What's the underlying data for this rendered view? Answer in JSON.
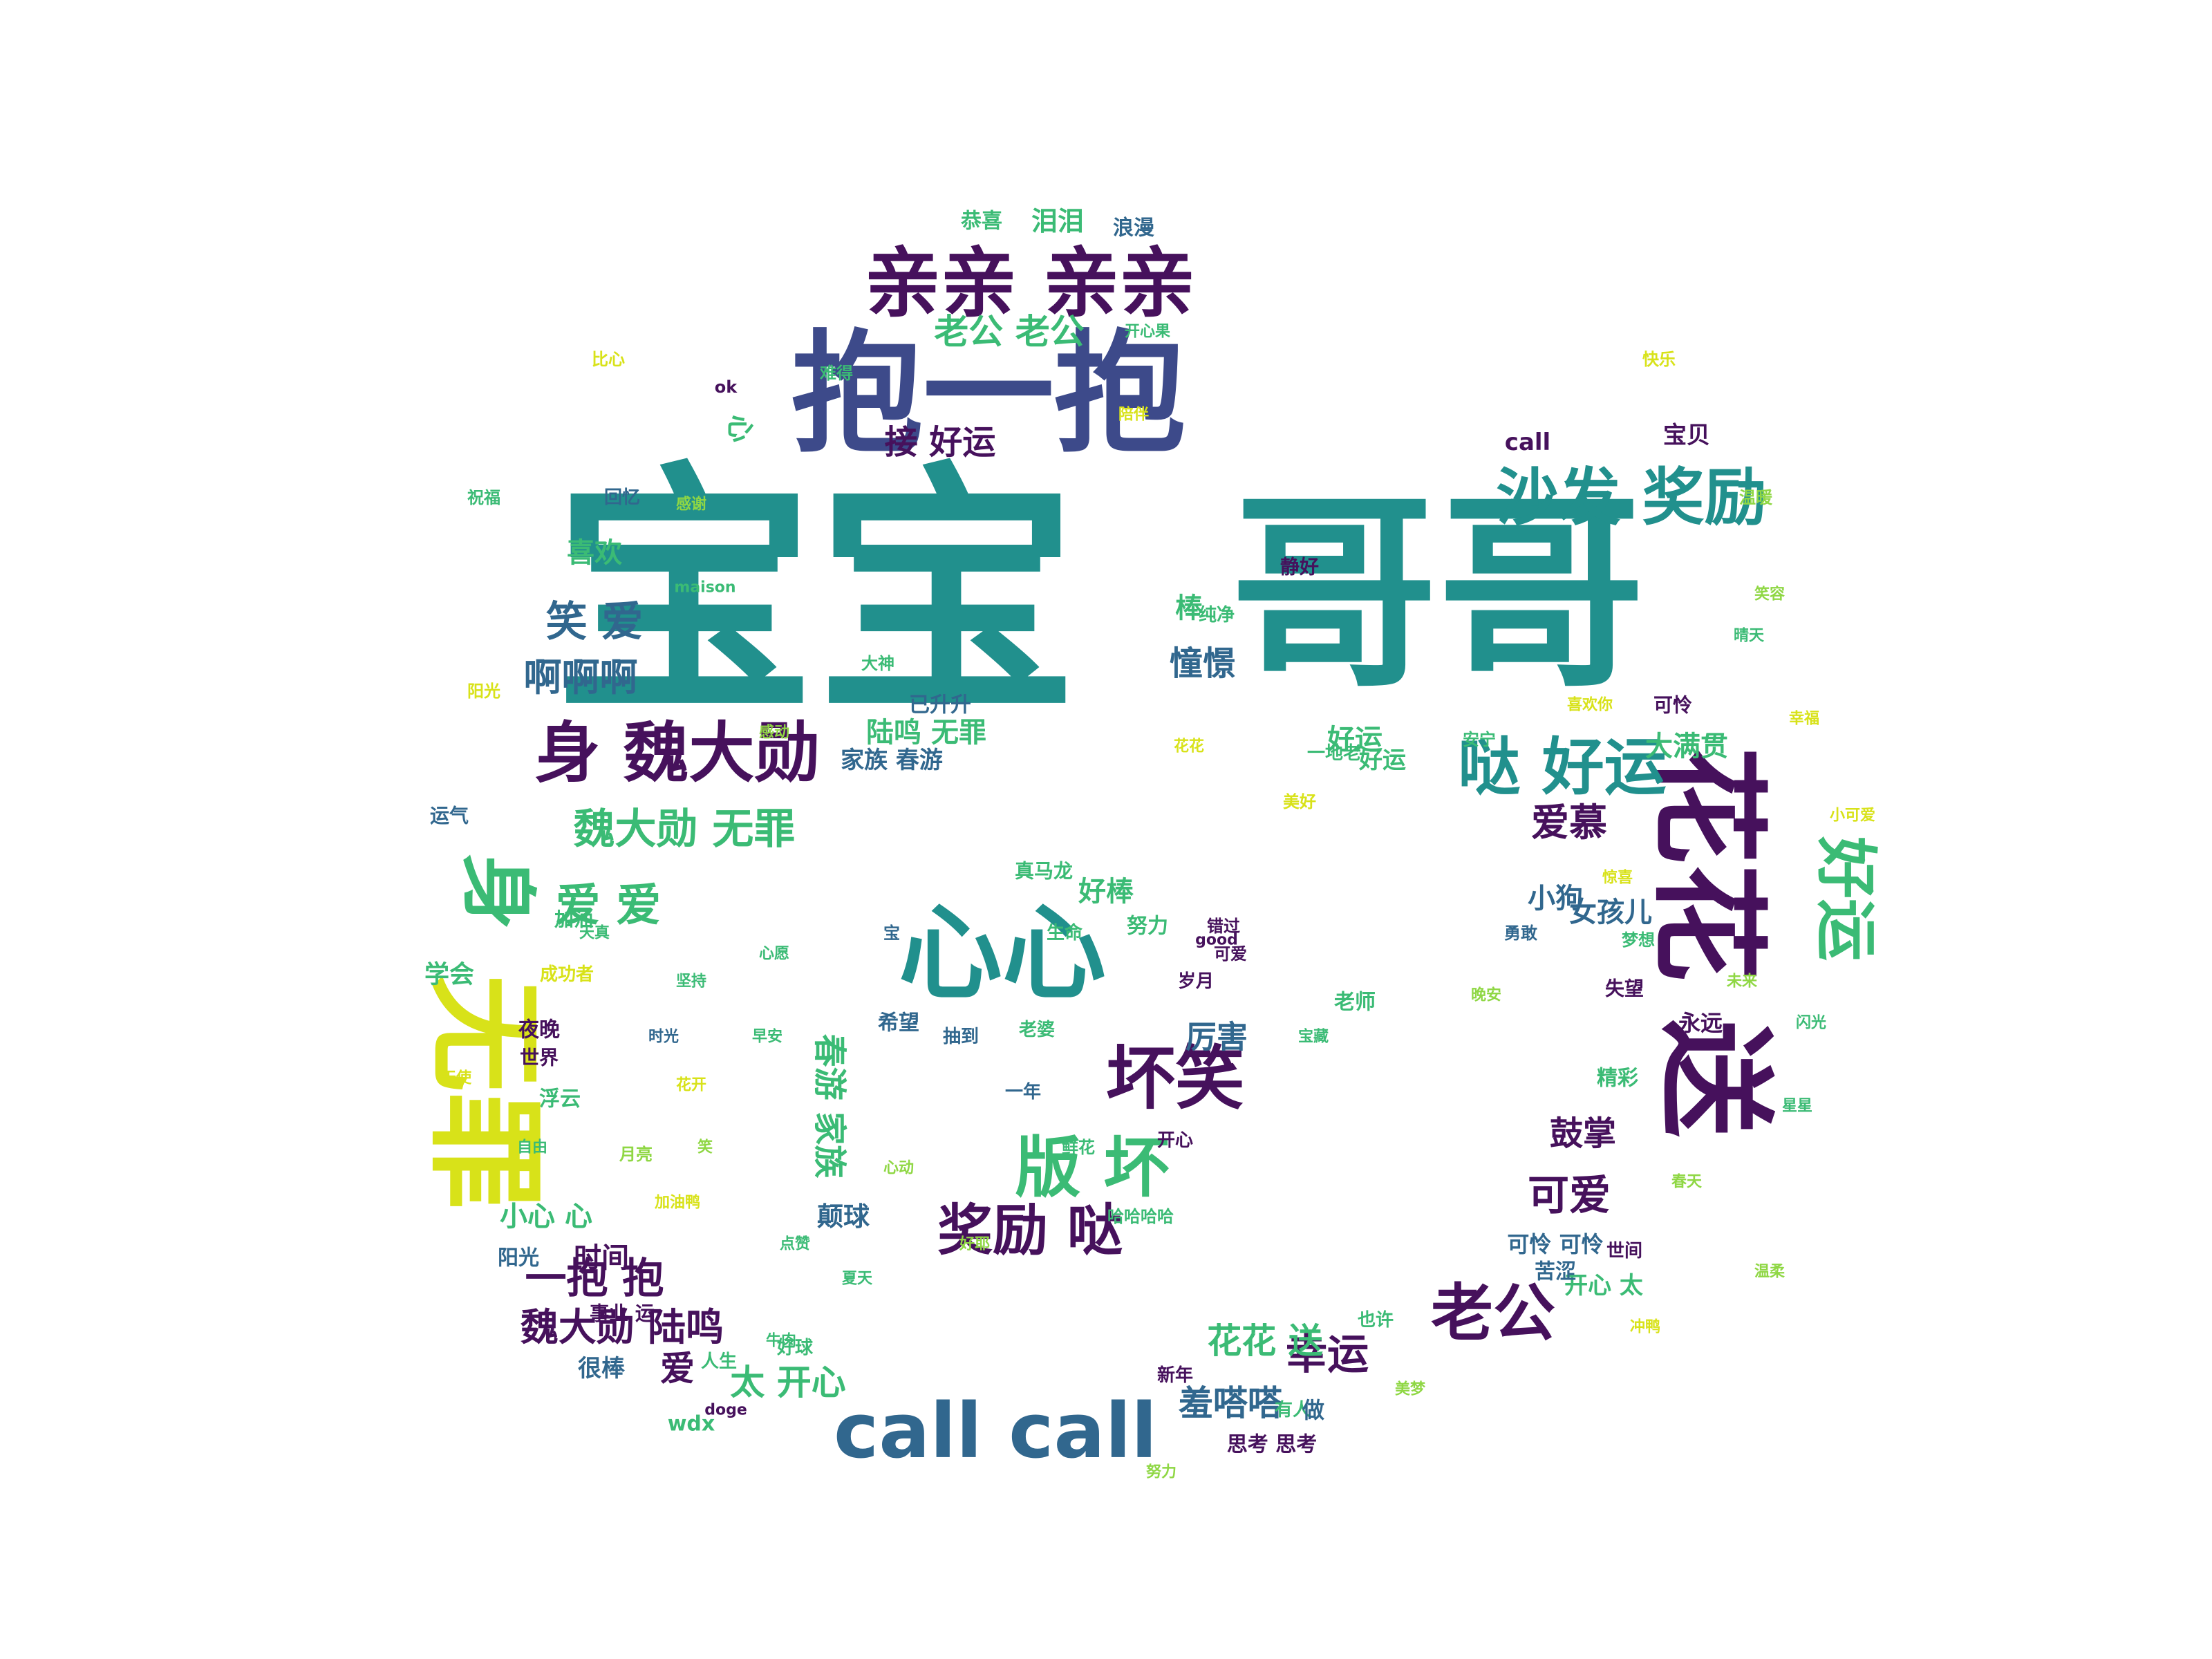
{
  "word_cloud": {
    "shape": "ring-with-cloud-bumps",
    "palette": {
      "deep_purple": "#46115c",
      "indigo": "#3d4a8a",
      "slate_blue": "#31678e",
      "teal": "#21908d",
      "green": "#3bbb75",
      "lime": "#8fd744",
      "yellow": "#d8e219"
    },
    "words": [
      {
        "text": "宝宝",
        "color": "#21908d"
      },
      {
        "text": "哥哥",
        "color": "#21908d"
      },
      {
        "text": "抱一抱",
        "color": "#3d4a8a"
      },
      {
        "text": "亲亲 亲亲",
        "color": "#46115c"
      },
      {
        "text": "心心",
        "color": "#21908d"
      },
      {
        "text": "无罪",
        "color": "#d8e219"
      },
      {
        "text": "送",
        "color": "#46115c"
      },
      {
        "text": "花花",
        "color": "#46115c"
      },
      {
        "text": "好运",
        "color": "#3bbb75"
      },
      {
        "text": "call call",
        "color": "#31678e"
      },
      {
        "text": "沙发 奖励",
        "color": "#21908d"
      },
      {
        "text": "身 魏大勋",
        "color": "#46115c"
      },
      {
        "text": "哒 好运",
        "color": "#21908d"
      },
      {
        "text": "魏大勋 无罪",
        "color": "#3bbb75"
      },
      {
        "text": "身",
        "color": "#3bbb75"
      },
      {
        "text": "坏笑",
        "color": "#46115c"
      },
      {
        "text": "版 坏",
        "color": "#3bbb75"
      },
      {
        "text": "奖励 哒",
        "color": "#46115c"
      },
      {
        "text": "老公",
        "color": "#46115c"
      },
      {
        "text": "老公 老公",
        "color": "#3bbb75"
      },
      {
        "text": "接 好运",
        "color": "#46115c"
      },
      {
        "text": "笑 爱",
        "color": "#31678e"
      },
      {
        "text": "啊啊啊",
        "color": "#31678e"
      },
      {
        "text": "喜欢",
        "color": "#3bbb75"
      },
      {
        "text": "爱 爱",
        "color": "#3bbb75"
      },
      {
        "text": "一抱 抱",
        "color": "#46115c"
      },
      {
        "text": "魏大勋 陆鸣",
        "color": "#46115c"
      },
      {
        "text": "爱",
        "color": "#46115c"
      },
      {
        "text": "太 开心",
        "color": "#3bbb75"
      },
      {
        "text": "幸运",
        "color": "#46115c"
      },
      {
        "text": "花花 送",
        "color": "#3bbb75"
      },
      {
        "text": "羞嗒嗒",
        "color": "#31678e"
      },
      {
        "text": "可爱",
        "color": "#46115c"
      },
      {
        "text": "鼓掌",
        "color": "#46115c"
      },
      {
        "text": "爱慕",
        "color": "#46115c"
      },
      {
        "text": "小狗",
        "color": "#31678e"
      },
      {
        "text": "女孩儿",
        "color": "#31678e"
      },
      {
        "text": "大满贯",
        "color": "#3bbb75"
      },
      {
        "text": "好运",
        "color": "#3bbb75"
      },
      {
        "text": "憧憬",
        "color": "#31678e"
      },
      {
        "text": "棒",
        "color": "#3bbb75"
      },
      {
        "text": "陆鸣 无罪",
        "color": "#3bbb75"
      },
      {
        "text": "家族 春游",
        "color": "#31678e"
      },
      {
        "text": "厉害",
        "color": "#31678e"
      },
      {
        "text": "好棒",
        "color": "#3bbb75"
      },
      {
        "text": "努力",
        "color": "#3bbb75"
      },
      {
        "text": "春游 家族",
        "color": "#3bbb75"
      },
      {
        "text": "颠球",
        "color": "#31678e"
      },
      {
        "text": "恭喜",
        "color": "#3bbb75"
      },
      {
        "text": "泪泪",
        "color": "#3bbb75"
      },
      {
        "text": "浪漫",
        "color": "#31678e"
      },
      {
        "text": "宝贝",
        "color": "#46115c"
      },
      {
        "text": "开心 太",
        "color": "#3bbb75"
      },
      {
        "text": "可怜 可怜",
        "color": "#31678e"
      },
      {
        "text": "小心 心",
        "color": "#3bbb75"
      },
      {
        "text": "阳光",
        "color": "#31678e"
      },
      {
        "text": "真马龙",
        "color": "#3bbb75"
      },
      {
        "text": "生命",
        "color": "#3bbb75"
      },
      {
        "text": "希望",
        "color": "#31678e"
      },
      {
        "text": "抽到",
        "color": "#31678e"
      },
      {
        "text": "岁月",
        "color": "#46115c"
      },
      {
        "text": "哈哈哈哈",
        "color": "#3bbb75"
      },
      {
        "text": "老师",
        "color": "#3bbb75"
      },
      {
        "text": "好运",
        "color": "#3bbb75"
      },
      {
        "text": "可爱",
        "color": "#46115c"
      },
      {
        "text": "老婆",
        "color": "#3bbb75"
      },
      {
        "text": "已升升",
        "color": "#31678e"
      },
      {
        "text": "有人",
        "color": "#3bbb75"
      },
      {
        "text": "思考 思考",
        "color": "#46115c"
      },
      {
        "text": "做",
        "color": "#31678e"
      },
      {
        "text": "学会",
        "color": "#3bbb75"
      },
      {
        "text": "加油",
        "color": "#3bbb75"
      },
      {
        "text": "世界",
        "color": "#46115c"
      },
      {
        "text": "浮云",
        "color": "#3bbb75"
      },
      {
        "text": "事业 运",
        "color": "#46115c"
      },
      {
        "text": "很棒",
        "color": "#31678e"
      },
      {
        "text": "人生",
        "color": "#3bbb75"
      },
      {
        "text": "好球",
        "color": "#3bbb75"
      },
      {
        "text": "wdx",
        "color": "#3bbb75"
      },
      {
        "text": "新年",
        "color": "#46115c"
      },
      {
        "text": "永远",
        "color": "#46115c"
      },
      {
        "text": "精彩",
        "color": "#3bbb75"
      },
      {
        "text": "时间",
        "color": "#46115c"
      },
      {
        "text": "心",
        "color": "#3bbb75"
      },
      {
        "text": "运气",
        "color": "#31678e"
      },
      {
        "text": "苦涩",
        "color": "#31678e"
      },
      {
        "text": "世间",
        "color": "#46115c"
      },
      {
        "text": "也许",
        "color": "#3bbb75"
      },
      {
        "text": "失望",
        "color": "#46115c"
      },
      {
        "text": "开心",
        "color": "#46115c"
      },
      {
        "text": "call",
        "color": "#46115c"
      },
      {
        "text": "安宁",
        "color": "#3bbb75"
      },
      {
        "text": "一地老",
        "color": "#3bbb75"
      },
      {
        "text": "可怜",
        "color": "#46115c"
      },
      {
        "text": "夜晚",
        "color": "#46115c"
      },
      {
        "text": "天真",
        "color": "#3bbb75"
      },
      {
        "text": "成功者",
        "color": "#d8e219"
      },
      {
        "text": "错过",
        "color": "#46115c"
      },
      {
        "text": "梦想",
        "color": "#3bbb75"
      },
      {
        "text": "一年",
        "color": "#31678e"
      },
      {
        "text": "静好",
        "color": "#46115c"
      },
      {
        "text": "纯净",
        "color": "#3bbb75"
      },
      {
        "text": "宝",
        "color": "#31678e"
      },
      {
        "text": "大神",
        "color": "#3bbb75"
      },
      {
        "text": "花花",
        "color": "#d8e219"
      },
      {
        "text": "鲜花",
        "color": "#3bbb75"
      },
      {
        "text": "ok",
        "color": "#46115c"
      },
      {
        "text": "maison",
        "color": "#3bbb75"
      },
      {
        "text": "doge",
        "color": "#46115c"
      },
      {
        "text": "good",
        "color": "#46115c"
      },
      {
        "text": "牛肉",
        "color": "#3bbb75"
      },
      {
        "text": "比心",
        "color": "#d8e219"
      },
      {
        "text": "难得",
        "color": "#3bbb75"
      },
      {
        "text": "美好",
        "color": "#d8e219"
      },
      {
        "text": "感动",
        "color": "#8fd744"
      },
      {
        "text": "祝福",
        "color": "#3bbb75"
      },
      {
        "text": "时光",
        "color": "#31678e"
      },
      {
        "text": "温暖",
        "color": "#8fd744"
      },
      {
        "text": "天使",
        "color": "#d8e219"
      },
      {
        "text": "月亮",
        "color": "#8fd744"
      },
      {
        "text": "星星",
        "color": "#3bbb75"
      },
      {
        "text": "快乐",
        "color": "#d8e219"
      },
      {
        "text": "笑容",
        "color": "#8fd744"
      },
      {
        "text": "自由",
        "color": "#3bbb75"
      },
      {
        "text": "回忆",
        "color": "#31678e"
      },
      {
        "text": "阳光",
        "color": "#d8e219"
      },
      {
        "text": "晚安",
        "color": "#8fd744"
      },
      {
        "text": "早安",
        "color": "#3bbb75"
      },
      {
        "text": "花开",
        "color": "#d8e219"
      },
      {
        "text": "春天",
        "color": "#8fd744"
      },
      {
        "text": "夏天",
        "color": "#3bbb75"
      },
      {
        "text": "勇敢",
        "color": "#31678e"
      },
      {
        "text": "温柔",
        "color": "#8fd744"
      },
      {
        "text": "坚持",
        "color": "#3bbb75"
      },
      {
        "text": "陪伴",
        "color": "#d8e219"
      },
      {
        "text": "未来",
        "color": "#8fd744"
      },
      {
        "text": "心愿",
        "color": "#3bbb75"
      },
      {
        "text": "惊喜",
        "color": "#d8e219"
      },
      {
        "text": "感谢",
        "color": "#8fd744"
      },
      {
        "text": "开心果",
        "color": "#3bbb75"
      },
      {
        "text": "幸福",
        "color": "#d8e219"
      },
      {
        "text": "努力",
        "color": "#8fd744"
      },
      {
        "text": "闪光",
        "color": "#3bbb75"
      },
      {
        "text": "加油鸭",
        "color": "#d8e219"
      },
      {
        "text": "美梦",
        "color": "#8fd744"
      },
      {
        "text": "晴天",
        "color": "#3bbb75"
      },
      {
        "text": "冲鸭",
        "color": "#d8e219"
      },
      {
        "text": "心动",
        "color": "#8fd744"
      },
      {
        "text": "宝藏",
        "color": "#3bbb75"
      },
      {
        "text": "小可爱",
        "color": "#d8e219"
      },
      {
        "text": "好耶",
        "color": "#8fd744"
      },
      {
        "text": "点赞",
        "color": "#3bbb75"
      },
      {
        "text": "喜欢你",
        "color": "#d8e219"
      },
      {
        "text": "笑",
        "color": "#8fd744"
      }
    ]
  }
}
